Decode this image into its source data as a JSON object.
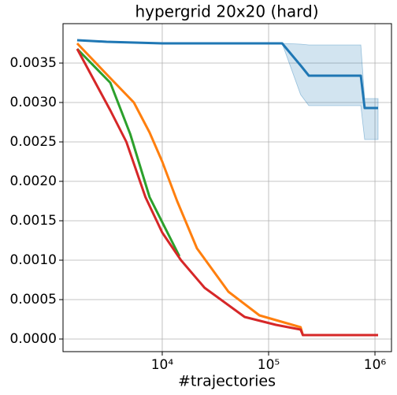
{
  "chart_data": {
    "type": "line",
    "title": "hypergrid 20x20 (hard)",
    "x_label": "#trajectories",
    "x_scale": "log",
    "grid": true,
    "xlim": [
      1167,
      1430000
    ],
    "ylim": [
      -0.00016,
      0.004
    ],
    "xticks": [
      {
        "value": 10000,
        "label": "10⁴"
      },
      {
        "value": 100000,
        "label": "10⁵"
      },
      {
        "value": 1000000,
        "label": "10⁶"
      }
    ],
    "yticks": [
      {
        "value": 0,
        "label": "0.0000"
      },
      {
        "value": 0.0005,
        "label": "0.0005"
      },
      {
        "value": 0.001,
        "label": "0.0010"
      },
      {
        "value": 0.0015,
        "label": "0.0015"
      },
      {
        "value": 0.002,
        "label": "0.0020"
      },
      {
        "value": 0.0025,
        "label": "0.0025"
      },
      {
        "value": 0.003,
        "label": "0.0030"
      },
      {
        "value": 0.0035,
        "label": "0.0035"
      }
    ],
    "series": [
      {
        "color": "#1f77b4",
        "x": [
          1585,
          3000,
          10000,
          134000,
          200000,
          239000,
          736000,
          800000,
          1070000
        ],
        "values": [
          0.00379,
          0.00377,
          0.00375,
          0.00375,
          0.00347,
          0.00334,
          0.00334,
          0.00293,
          0.00293
        ],
        "lower": [
          0.00379,
          0.00377,
          0.00375,
          0.00375,
          0.0031,
          0.00296,
          0.00296,
          0.00253,
          0.00253
        ],
        "upper": [
          0.00379,
          0.00377,
          0.00375,
          0.00375,
          0.00374,
          0.00373,
          0.00373,
          0.00305,
          0.00305
        ]
      },
      {
        "color": "#ff7f0e",
        "x": [
          1585,
          3090,
          5410,
          7600,
          10000,
          13800,
          21200,
          41900,
          82000,
          200000,
          210000,
          1070000
        ],
        "values": [
          0.00375,
          0.00334,
          0.003,
          0.00262,
          0.00225,
          0.00175,
          0.00115,
          0.0006,
          0.0003,
          0.00015,
          5e-05,
          5e-05
        ]
      },
      {
        "color": "#2ca02c",
        "x": [
          1585,
          3250,
          5000,
          7600,
          14500
        ],
        "values": [
          0.00368,
          0.00325,
          0.0026,
          0.0018,
          0.00105
        ]
      },
      {
        "color": "#d62728",
        "x": [
          1585,
          3250,
          4600,
          6950,
          10000,
          15000,
          25000,
          59500,
          117000,
          200000,
          210000,
          1070000
        ],
        "values": [
          0.00368,
          0.0029,
          0.0025,
          0.0018,
          0.00135,
          0.001,
          0.00065,
          0.00028,
          0.00018,
          0.00012,
          5e-05,
          5e-05
        ]
      }
    ]
  }
}
